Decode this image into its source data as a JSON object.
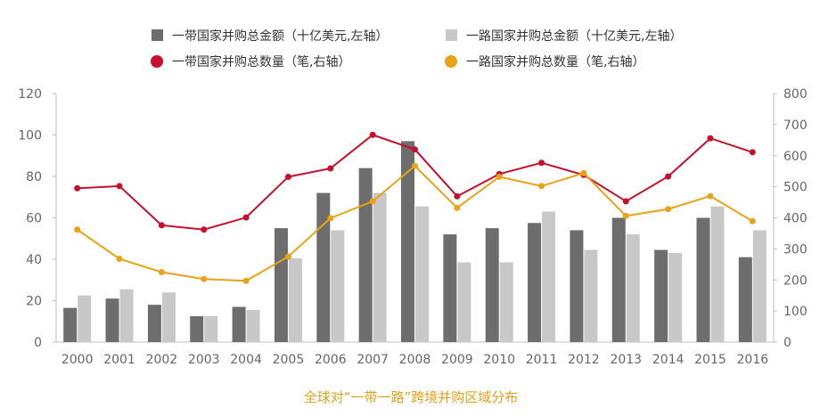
{
  "chart_data": {
    "type": "bar+line",
    "title": "",
    "caption": "全球对“一带一路”跨境并购区域分布",
    "categories": [
      "2000",
      "2001",
      "2002",
      "2003",
      "2004",
      "2005",
      "2006",
      "2007",
      "2008",
      "2009",
      "2010",
      "2011",
      "2012",
      "2013",
      "2014",
      "2015",
      "2016"
    ],
    "left_axis": {
      "ylim": [
        0,
        120
      ],
      "ticks": [
        "0",
        "20",
        "40",
        "60",
        "80",
        "100",
        "120"
      ]
    },
    "right_axis": {
      "ylim": [
        0,
        800
      ],
      "ticks": [
        "0",
        "100",
        "200",
        "300",
        "400",
        "500",
        "600",
        "700",
        "800"
      ]
    },
    "grid": false,
    "legend_position": "top",
    "series": [
      {
        "name": "一带国家并购总金额（十亿美元,左轴）",
        "kind": "bar",
        "axis": "left",
        "color": "#6d6d6d",
        "values": [
          16.5,
          21,
          18,
          12.5,
          17,
          55,
          72,
          84,
          97,
          52,
          55,
          57.5,
          54,
          60,
          44.5,
          60,
          41
        ]
      },
      {
        "name": "一路国家并购总金额（十亿美元,左轴）",
        "kind": "bar",
        "axis": "left",
        "color": "#c8c8c8",
        "values": [
          22.5,
          25.5,
          24,
          12.5,
          15.5,
          40.5,
          54,
          72,
          65.5,
          38.5,
          38.5,
          63,
          44.5,
          52,
          43,
          65.5,
          54
        ]
      },
      {
        "name": "一带国家并购总数量（笔,右轴）",
        "kind": "line",
        "axis": "right",
        "color": "#c8102e",
        "values": [
          495,
          502,
          376,
          362,
          401,
          532,
          559,
          667,
          620,
          469,
          541,
          577,
          538,
          453,
          533,
          656,
          611
        ]
      },
      {
        "name": "一路国家并购总数量（笔,右轴）",
        "kind": "line",
        "axis": "right",
        "color": "#e8a317",
        "values": [
          362,
          268,
          225,
          203,
          197,
          275,
          399,
          453,
          567,
          432,
          532,
          502,
          544,
          406,
          428,
          470,
          389
        ]
      }
    ]
  }
}
